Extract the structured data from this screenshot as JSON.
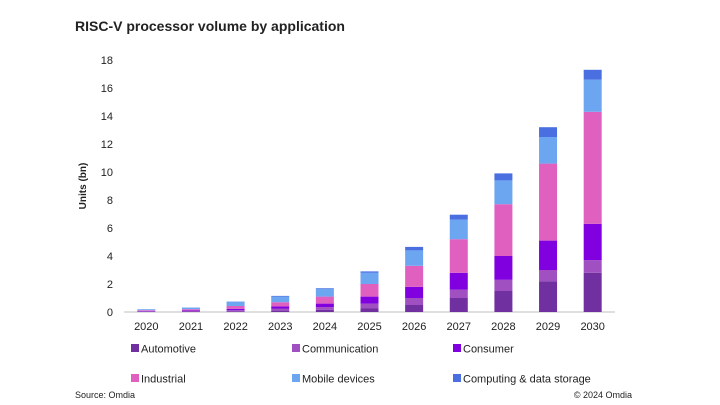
{
  "chart_data": {
    "type": "bar",
    "stacked": true,
    "title": "RISC-V processor volume by application",
    "xlabel": "",
    "ylabel": "Units (bn)",
    "ylim": [
      0,
      18
    ],
    "yticks": [
      0,
      2,
      4,
      6,
      8,
      10,
      12,
      14,
      16,
      18
    ],
    "grid": false,
    "legend_position": "bottom",
    "categories": [
      "2020",
      "2021",
      "2022",
      "2023",
      "2024",
      "2025",
      "2026",
      "2027",
      "2028",
      "2029",
      "2030"
    ],
    "series": [
      {
        "name": "Automotive",
        "color": "#7030A0",
        "values": [
          0.02,
          0.03,
          0.05,
          0.1,
          0.15,
          0.25,
          0.5,
          1.0,
          1.5,
          2.2,
          2.8
        ]
      },
      {
        "name": "Communication",
        "color": "#A050C0",
        "values": [
          0.03,
          0.04,
          0.08,
          0.15,
          0.2,
          0.35,
          0.5,
          0.6,
          0.8,
          0.8,
          0.9
        ]
      },
      {
        "name": "Consumer",
        "color": "#8000E0",
        "values": [
          0.03,
          0.05,
          0.1,
          0.15,
          0.25,
          0.5,
          0.8,
          1.2,
          1.7,
          2.1,
          2.6
        ]
      },
      {
        "name": "Industrial",
        "color": "#E060C0",
        "values": [
          0.05,
          0.08,
          0.2,
          0.3,
          0.5,
          0.9,
          1.5,
          2.4,
          3.7,
          5.5,
          8.0
        ]
      },
      {
        "name": "Mobile devices",
        "color": "#6CA6F0",
        "values": [
          0.07,
          0.12,
          0.3,
          0.4,
          0.55,
          0.8,
          1.1,
          1.4,
          1.7,
          1.9,
          2.3
        ]
      },
      {
        "name": "Computing & data storage",
        "color": "#4A6FE0",
        "values": [
          0.0,
          0.0,
          0.02,
          0.05,
          0.05,
          0.1,
          0.25,
          0.35,
          0.5,
          0.7,
          0.7
        ]
      }
    ]
  },
  "source": "Source: Omdia",
  "copyright": "© 2024 Omdia"
}
